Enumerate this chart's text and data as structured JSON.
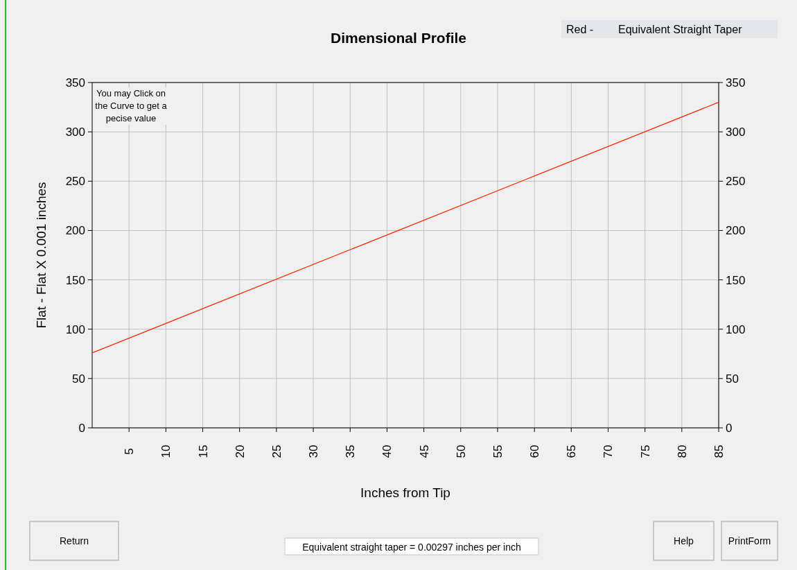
{
  "chart_data": {
    "type": "line",
    "title": "Dimensional Profile",
    "xlabel": "Inches from Tip",
    "ylabel": "Flat - Flat X 0.001 inches",
    "x": [
      0,
      85
    ],
    "series": [
      {
        "name": "Equivalent Straight Taper",
        "color": "#ff2a00",
        "values": [
          76,
          330
        ]
      }
    ],
    "legend": "top right",
    "legend_title": "Red -",
    "xlim": [
      0,
      85
    ],
    "xticks": [
      5,
      10,
      15,
      20,
      25,
      30,
      35,
      40,
      45,
      50,
      55,
      60,
      65,
      70,
      75,
      80,
      85
    ],
    "ylim": [
      0,
      350
    ],
    "yticks": [
      0,
      50,
      100,
      150,
      200,
      250,
      300,
      350
    ],
    "y2lim": [
      0,
      350
    ],
    "y2ticks": [
      0,
      50,
      100,
      150,
      200,
      250,
      300,
      350
    ],
    "grid": true,
    "marker": "none",
    "line_style": "solid",
    "annotations": [
      "You may Click on the Curve to get a pecise value",
      "Equivalent straight taper = 0.00297 inches per inch",
      "Return",
      "Help",
      "PrintForm"
    ]
  }
}
